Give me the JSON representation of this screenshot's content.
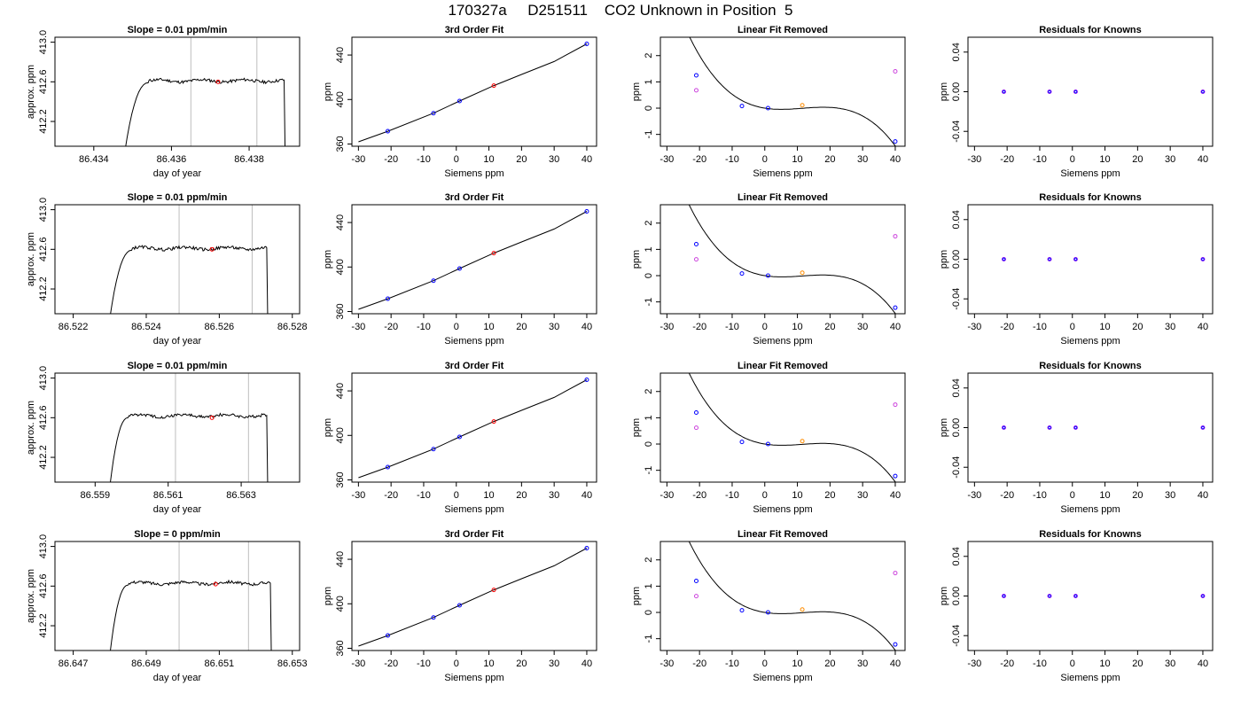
{
  "header": {
    "title": "170327a     D251511    CO2 Unknown in Position  5"
  },
  "colors": {
    "trace": "#000000",
    "gray_line": "#bebebe",
    "marker_red": "#ff0000",
    "marker_blue": "#0000ff",
    "marker_orange": "#ff8c00",
    "marker_purple": "#a020f0",
    "marker_magenta": "#cc44dd"
  },
  "chart_data": [
    {
      "type": "line",
      "title": "Slope =  0.01  ppm/min",
      "xlabel": "day of year",
      "ylabel": "approx. ppm",
      "xlim": [
        86.433,
        86.4393
      ],
      "ylim": [
        411.95,
        413.05
      ],
      "x_ticks": [
        86.434,
        86.436,
        86.438
      ],
      "x_tick_labels": [
        "86.434",
        "86.436",
        "86.438"
      ],
      "y_ticks": [
        412.2,
        412.6,
        413.0
      ],
      "y_tick_labels": [
        "412.2",
        "412.6",
        "413.0"
      ],
      "trace": {
        "t_start": 86.4348,
        "t_plateau": 86.4354,
        "t_end": 86.4389,
        "level": 412.61,
        "low": 411.9
      },
      "vlines": [
        86.4365,
        86.4382
      ],
      "marker": {
        "x": 86.4372,
        "y": 412.6
      }
    },
    {
      "type": "scatter",
      "title": "3rd Order Fit",
      "xlabel": "Siemens ppm",
      "ylabel": "ppm",
      "xlim": [
        -32,
        43
      ],
      "ylim": [
        358,
        456
      ],
      "x_ticks": [
        -30,
        -20,
        -10,
        0,
        10,
        20,
        30,
        40
      ],
      "x_tick_labels": [
        "-30",
        "-20",
        "-10",
        "0",
        "10",
        "20",
        "30",
        "40"
      ],
      "y_ticks": [
        360,
        400,
        440
      ],
      "y_tick_labels": [
        "360",
        "400",
        "440"
      ],
      "curve": [
        [
          -30,
          362
        ],
        [
          -21,
          371.5
        ],
        [
          -7,
          387.7
        ],
        [
          1,
          398.6
        ],
        [
          11.5,
          412.5
        ],
        [
          20,
          422.5
        ],
        [
          30,
          434.2
        ],
        [
          40,
          450
        ]
      ],
      "points_blue": [
        [
          -21,
          371.5
        ],
        [
          -7,
          387.7
        ],
        [
          1,
          398.6
        ],
        [
          40,
          450
        ]
      ],
      "points_red": [
        [
          11.5,
          412.5
        ]
      ]
    },
    {
      "type": "scatter",
      "title": "Linear Fit Removed",
      "xlabel": "Siemens ppm",
      "ylabel": "ppm",
      "xlim": [
        -32,
        43
      ],
      "ylim": [
        -1.45,
        2.7
      ],
      "x_ticks": [
        -30,
        -20,
        -10,
        0,
        10,
        20,
        30,
        40
      ],
      "x_tick_labels": [
        "-30",
        "-20",
        "-10",
        "0",
        "10",
        "20",
        "30",
        "40"
      ],
      "y_ticks": [
        -1,
        0,
        1,
        2
      ],
      "y_tick_labels": [
        "-1",
        "0",
        "1",
        "2"
      ],
      "poly": {
        "c0": 0.0,
        "c1": -0.02,
        "c2": 0.00254,
        "c3": -7.35e-05
      },
      "points_blue": [
        [
          -21,
          1.25
        ],
        [
          -7,
          0.08
        ],
        [
          1,
          0.0
        ],
        [
          40,
          -1.27
        ]
      ],
      "points_orange": [
        [
          11.5,
          0.11
        ]
      ],
      "points_purple": [
        [
          -21,
          0.68
        ],
        [
          40,
          1.4
        ]
      ]
    },
    {
      "type": "scatter",
      "title": "Residuals for Knowns",
      "xlabel": "Siemens ppm",
      "ylabel": "ppm",
      "xlim": [
        -32,
        43
      ],
      "ylim": [
        -0.055,
        0.055
      ],
      "x_ticks": [
        -30,
        -20,
        -10,
        0,
        10,
        20,
        30,
        40
      ],
      "x_tick_labels": [
        "-30",
        "-20",
        "-10",
        "0",
        "10",
        "20",
        "30",
        "40"
      ],
      "y_ticks": [
        -0.04,
        0.0,
        0.04
      ],
      "y_tick_labels": [
        "-0.04",
        "0.00",
        "0.04"
      ],
      "points_blue": [
        [
          -21,
          0
        ],
        [
          -7,
          0
        ],
        [
          1,
          0
        ],
        [
          40,
          0
        ]
      ]
    },
    {
      "type": "line",
      "title": "Slope =  0.01  ppm/min",
      "xlabel": "day of year",
      "ylabel": "approx. ppm",
      "xlim": [
        86.5215,
        86.5282
      ],
      "ylim": [
        411.95,
        413.05
      ],
      "x_ticks": [
        86.522,
        86.524,
        86.526,
        86.528
      ],
      "x_tick_labels": [
        "86.522",
        "86.524",
        "86.526",
        "86.528"
      ],
      "y_ticks": [
        412.2,
        412.6,
        413.0
      ],
      "y_tick_labels": [
        "412.2",
        "412.6",
        "413.0"
      ],
      "trace": {
        "t_start": 86.523,
        "t_plateau": 86.5236,
        "t_end": 86.5273,
        "level": 412.61,
        "low": 411.9
      },
      "vlines": [
        86.5249,
        86.5269
      ],
      "marker": {
        "x": 86.5258,
        "y": 412.6
      }
    },
    {
      "type": "scatter",
      "title": "3rd Order Fit",
      "xlabel": "Siemens ppm",
      "ylabel": "ppm",
      "xlim": [
        -32,
        43
      ],
      "ylim": [
        358,
        456
      ],
      "x_ticks": [
        -30,
        -20,
        -10,
        0,
        10,
        20,
        30,
        40
      ],
      "x_tick_labels": [
        "-30",
        "-20",
        "-10",
        "0",
        "10",
        "20",
        "30",
        "40"
      ],
      "y_ticks": [
        360,
        400,
        440
      ],
      "y_tick_labels": [
        "360",
        "400",
        "440"
      ],
      "curve": [
        [
          -30,
          362
        ],
        [
          -21,
          371.5
        ],
        [
          -7,
          387.7
        ],
        [
          1,
          398.6
        ],
        [
          11.5,
          412.5
        ],
        [
          20,
          422.5
        ],
        [
          30,
          434.2
        ],
        [
          40,
          450
        ]
      ],
      "points_blue": [
        [
          -21,
          371.5
        ],
        [
          -7,
          387.7
        ],
        [
          1,
          398.6
        ],
        [
          40,
          450
        ]
      ],
      "points_red": [
        [
          11.5,
          412.5
        ]
      ]
    },
    {
      "type": "scatter",
      "title": "Linear Fit Removed",
      "xlabel": "Siemens ppm",
      "ylabel": "ppm",
      "xlim": [
        -32,
        43
      ],
      "ylim": [
        -1.45,
        2.7
      ],
      "x_ticks": [
        -30,
        -20,
        -10,
        0,
        10,
        20,
        30,
        40
      ],
      "x_tick_labels": [
        "-30",
        "-20",
        "-10",
        "0",
        "10",
        "20",
        "30",
        "40"
      ],
      "y_ticks": [
        -1,
        0,
        1,
        2
      ],
      "y_tick_labels": [
        "-1",
        "0",
        "1",
        "2"
      ],
      "poly": {
        "c0": 0.0,
        "c1": -0.02,
        "c2": 0.00248,
        "c3": -7.2e-05
      },
      "points_blue": [
        [
          -21,
          1.2
        ],
        [
          -7,
          0.08
        ],
        [
          1,
          0.0
        ],
        [
          40,
          -1.22
        ]
      ],
      "points_orange": [
        [
          11.5,
          0.11
        ]
      ],
      "points_purple": [
        [
          -21,
          0.62
        ],
        [
          40,
          1.5
        ]
      ]
    },
    {
      "type": "scatter",
      "title": "Residuals for Knowns",
      "xlabel": "Siemens ppm",
      "ylabel": "ppm",
      "xlim": [
        -32,
        43
      ],
      "ylim": [
        -0.055,
        0.055
      ],
      "x_ticks": [
        -30,
        -20,
        -10,
        0,
        10,
        20,
        30,
        40
      ],
      "x_tick_labels": [
        "-30",
        "-20",
        "-10",
        "0",
        "10",
        "20",
        "30",
        "40"
      ],
      "y_ticks": [
        -0.04,
        0.0,
        0.04
      ],
      "y_tick_labels": [
        "-0.04",
        "0.00",
        "0.04"
      ],
      "points_blue": [
        [
          -21,
          0
        ],
        [
          -7,
          0
        ],
        [
          1,
          0
        ],
        [
          40,
          0
        ]
      ]
    },
    {
      "type": "line",
      "title": "Slope =  0.01  ppm/min",
      "xlabel": "day of year",
      "ylabel": "approx. ppm",
      "xlim": [
        86.5579,
        86.5646
      ],
      "ylim": [
        411.95,
        413.05
      ],
      "x_ticks": [
        86.559,
        86.561,
        86.563
      ],
      "x_tick_labels": [
        "86.559",
        "86.561",
        "86.563"
      ],
      "y_ticks": [
        412.2,
        412.6,
        413.0
      ],
      "y_tick_labels": [
        "412.2",
        "412.6",
        "413.0"
      ],
      "trace": {
        "t_start": 86.5594,
        "t_plateau": 86.5599,
        "t_end": 86.5637,
        "level": 412.62,
        "low": 411.9
      },
      "vlines": [
        86.5612,
        86.5632
      ],
      "marker": {
        "x": 86.5622,
        "y": 412.6
      }
    },
    {
      "type": "scatter",
      "title": "3rd Order Fit",
      "xlabel": "Siemens ppm",
      "ylabel": "ppm",
      "xlim": [
        -32,
        43
      ],
      "ylim": [
        358,
        456
      ],
      "x_ticks": [
        -30,
        -20,
        -10,
        0,
        10,
        20,
        30,
        40
      ],
      "x_tick_labels": [
        "-30",
        "-20",
        "-10",
        "0",
        "10",
        "20",
        "30",
        "40"
      ],
      "y_ticks": [
        360,
        400,
        440
      ],
      "y_tick_labels": [
        "360",
        "400",
        "440"
      ],
      "curve": [
        [
          -30,
          362
        ],
        [
          -21,
          371.5
        ],
        [
          -7,
          387.7
        ],
        [
          1,
          398.6
        ],
        [
          11.5,
          412.5
        ],
        [
          20,
          422.5
        ],
        [
          30,
          434.2
        ],
        [
          40,
          450
        ]
      ],
      "points_blue": [
        [
          -21,
          371.5
        ],
        [
          -7,
          387.7
        ],
        [
          1,
          398.6
        ],
        [
          40,
          450
        ]
      ],
      "points_red": [
        [
          11.5,
          412.5
        ]
      ]
    },
    {
      "type": "scatter",
      "title": "Linear Fit Removed",
      "xlabel": "Siemens ppm",
      "ylabel": "ppm",
      "xlim": [
        -32,
        43
      ],
      "ylim": [
        -1.45,
        2.7
      ],
      "x_ticks": [
        -30,
        -20,
        -10,
        0,
        10,
        20,
        30,
        40
      ],
      "x_tick_labels": [
        "-30",
        "-20",
        "-10",
        "0",
        "10",
        "20",
        "30",
        "40"
      ],
      "y_ticks": [
        -1,
        0,
        1,
        2
      ],
      "y_tick_labels": [
        "-1",
        "0",
        "1",
        "2"
      ],
      "poly": {
        "c0": 0.0,
        "c1": -0.02,
        "c2": 0.00248,
        "c3": -7.2e-05
      },
      "points_blue": [
        [
          -21,
          1.2
        ],
        [
          -7,
          0.08
        ],
        [
          1,
          0.0
        ],
        [
          40,
          -1.22
        ]
      ],
      "points_orange": [
        [
          11.5,
          0.11
        ]
      ],
      "points_purple": [
        [
          -21,
          0.62
        ],
        [
          40,
          1.5
        ]
      ]
    },
    {
      "type": "scatter",
      "title": "Residuals for Knowns",
      "xlabel": "Siemens ppm",
      "ylabel": "ppm",
      "xlim": [
        -32,
        43
      ],
      "ylim": [
        -0.055,
        0.055
      ],
      "x_ticks": [
        -30,
        -20,
        -10,
        0,
        10,
        20,
        30,
        40
      ],
      "x_tick_labels": [
        "-30",
        "-20",
        "-10",
        "0",
        "10",
        "20",
        "30",
        "40"
      ],
      "y_ticks": [
        -0.04,
        0.0,
        0.04
      ],
      "y_tick_labels": [
        "-0.04",
        "0.00",
        "0.04"
      ],
      "points_blue": [
        [
          -21,
          0
        ],
        [
          -7,
          0
        ],
        [
          1,
          0
        ],
        [
          40,
          0
        ]
      ]
    },
    {
      "type": "line",
      "title": "Slope =  0  ppm/min",
      "xlabel": "day of year",
      "ylabel": "approx. ppm",
      "xlim": [
        86.6465,
        86.6532
      ],
      "ylim": [
        411.95,
        413.05
      ],
      "x_ticks": [
        86.647,
        86.649,
        86.651,
        86.653
      ],
      "x_tick_labels": [
        "86.647",
        "86.649",
        "86.651",
        "86.653"
      ],
      "y_ticks": [
        412.2,
        412.6,
        413.0
      ],
      "y_tick_labels": [
        "412.2",
        "412.6",
        "413.0"
      ],
      "trace": {
        "t_start": 86.648,
        "t_plateau": 86.6485,
        "t_end": 86.6524,
        "level": 412.63,
        "low": 411.9
      },
      "vlines": [
        86.6499,
        86.6518
      ],
      "marker": {
        "x": 86.6509,
        "y": 412.62
      }
    },
    {
      "type": "scatter",
      "title": "3rd Order Fit",
      "xlabel": "Siemens ppm",
      "ylabel": "ppm",
      "xlim": [
        -32,
        43
      ],
      "ylim": [
        358,
        456
      ],
      "x_ticks": [
        -30,
        -20,
        -10,
        0,
        10,
        20,
        30,
        40
      ],
      "x_tick_labels": [
        "-30",
        "-20",
        "-10",
        "0",
        "10",
        "20",
        "30",
        "40"
      ],
      "y_ticks": [
        360,
        400,
        440
      ],
      "y_tick_labels": [
        "360",
        "400",
        "440"
      ],
      "curve": [
        [
          -30,
          362
        ],
        [
          -21,
          371.5
        ],
        [
          -7,
          387.7
        ],
        [
          1,
          398.6
        ],
        [
          11.5,
          412.5
        ],
        [
          20,
          422.5
        ],
        [
          30,
          434.2
        ],
        [
          40,
          450
        ]
      ],
      "points_blue": [
        [
          -21,
          371.5
        ],
        [
          -7,
          387.7
        ],
        [
          1,
          398.6
        ],
        [
          40,
          450
        ]
      ],
      "points_red": [
        [
          11.5,
          412.5
        ]
      ]
    },
    {
      "type": "scatter",
      "title": "Linear Fit Removed",
      "xlabel": "Siemens ppm",
      "ylabel": "ppm",
      "xlim": [
        -32,
        43
      ],
      "ylim": [
        -1.45,
        2.7
      ],
      "x_ticks": [
        -30,
        -20,
        -10,
        0,
        10,
        20,
        30,
        40
      ],
      "x_tick_labels": [
        "-30",
        "-20",
        "-10",
        "0",
        "10",
        "20",
        "30",
        "40"
      ],
      "y_ticks": [
        -1,
        0,
        1,
        2
      ],
      "y_tick_labels": [
        "-1",
        "0",
        "1",
        "2"
      ],
      "poly": {
        "c0": 0.0,
        "c1": -0.02,
        "c2": 0.00248,
        "c3": -7.2e-05
      },
      "points_blue": [
        [
          -21,
          1.2
        ],
        [
          -7,
          0.08
        ],
        [
          1,
          0.0
        ],
        [
          40,
          -1.22
        ]
      ],
      "points_orange": [
        [
          11.5,
          0.11
        ]
      ],
      "points_purple": [
        [
          -21,
          0.62
        ],
        [
          40,
          1.5
        ]
      ]
    },
    {
      "type": "scatter",
      "title": "Residuals for Knowns",
      "xlabel": "Siemens ppm",
      "ylabel": "ppm",
      "xlim": [
        -32,
        43
      ],
      "ylim": [
        -0.055,
        0.055
      ],
      "x_ticks": [
        -30,
        -20,
        -10,
        0,
        10,
        20,
        30,
        40
      ],
      "x_tick_labels": [
        "-30",
        "-20",
        "-10",
        "0",
        "10",
        "20",
        "30",
        "40"
      ],
      "y_ticks": [
        -0.04,
        0.0,
        0.04
      ],
      "y_tick_labels": [
        "-0.04",
        "0.00",
        "0.04"
      ],
      "points_blue": [
        [
          -21,
          0
        ],
        [
          -7,
          0
        ],
        [
          1,
          0
        ],
        [
          40,
          0
        ]
      ]
    }
  ]
}
